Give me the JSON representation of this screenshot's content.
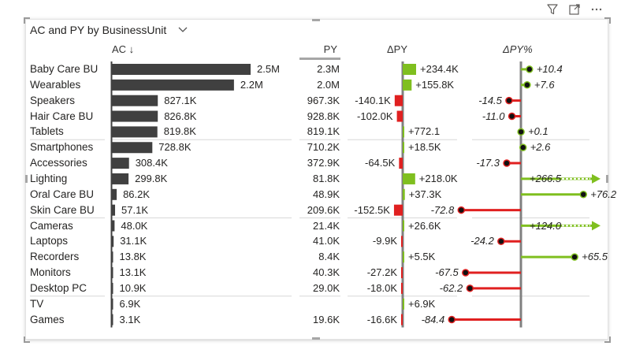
{
  "title": "AC and PY by BusinessUnit",
  "header_icons": [
    "filter-icon",
    "focus-mode-icon",
    "more-options-icon"
  ],
  "columns": {
    "ac": "AC ↓",
    "py": "PY",
    "dpy": "ΔPY",
    "dpyp": "ΔPY%"
  },
  "colors": {
    "bar": "#404040",
    "positive": "#7fbf1f",
    "negative": "#e02020",
    "axis": "#808080"
  },
  "chart_data": {
    "type": "bar",
    "title": "AC and PY by BusinessUnit",
    "categories": [
      "Baby Care BU",
      "Wearables",
      "Speakers",
      "Hair Care BU",
      "Tablets",
      "Smartphones",
      "Accessories",
      "Lighting",
      "Oral Care BU",
      "Skin Care BU",
      "Cameras",
      "Laptops",
      "Recorders",
      "Monitors",
      "Desktop PC",
      "TV",
      "Games"
    ],
    "series": [
      {
        "name": "AC",
        "values": [
          2500,
          2200,
          827.1,
          826.8,
          819.8,
          728.8,
          308.4,
          299.8,
          86.2,
          57.1,
          48.0,
          31.1,
          13.8,
          13.1,
          10.9,
          6.9,
          3.1
        ],
        "labels": [
          "2.5M",
          "2.2M",
          "827.1K",
          "826.8K",
          "819.8K",
          "728.8K",
          "308.4K",
          "299.8K",
          "86.2K",
          "57.1K",
          "48.0K",
          "31.1K",
          "13.8K",
          "13.1K",
          "10.9K",
          "6.9K",
          "3.1K"
        ]
      },
      {
        "name": "PY",
        "values": [
          2300,
          2000,
          967.3,
          928.8,
          819.1,
          710.2,
          372.9,
          81.8,
          48.9,
          209.6,
          21.4,
          41.0,
          8.4,
          40.3,
          29.0,
          null,
          19.6
        ],
        "labels": [
          "2.3M",
          "2.0M",
          "967.3K",
          "928.8K",
          "819.1K",
          "710.2K",
          "372.9K",
          "81.8K",
          "48.9K",
          "209.6K",
          "21.4K",
          "41.0K",
          "8.4K",
          "40.3K",
          "29.0K",
          "",
          "19.6K"
        ]
      },
      {
        "name": "ΔPY",
        "values": [
          234.4,
          155.8,
          -140.1,
          -102.0,
          0.772,
          18.5,
          -64.5,
          218.0,
          37.3,
          -152.5,
          26.6,
          -9.9,
          5.5,
          -27.2,
          -18.0,
          6.9,
          -16.6
        ],
        "labels": [
          "+234.4K",
          "+155.8K",
          "-140.1K",
          "-102.0K",
          "+772.1",
          "+18.5K",
          "-64.5K",
          "+218.0K",
          "+37.3K",
          "-152.5K",
          "+26.6K",
          "-9.9K",
          "+5.5K",
          "-27.2K",
          "-18.0K",
          "+6.9K",
          "-16.6K"
        ]
      },
      {
        "name": "ΔPY%",
        "values": [
          10.4,
          7.6,
          -14.5,
          -11.0,
          0.1,
          2.6,
          -17.3,
          266.5,
          76.2,
          -72.8,
          124.0,
          -24.2,
          65.5,
          -67.5,
          -62.2,
          null,
          -84.4
        ],
        "labels": [
          "+10.4",
          "+7.6",
          "-14.5",
          "-11.0",
          "+0.1",
          "+2.6",
          "-17.3",
          "+266.5",
          "+76.2",
          "-72.8",
          "+124.0",
          "-24.2",
          "+65.5",
          "-67.5",
          "-62.2",
          "",
          "-84.4"
        ]
      }
    ],
    "units": "thousands",
    "group_separators_after": [
      "Tablets",
      "Skin Care BU",
      "Desktop PC"
    ],
    "dpyp_clipped_rows": [
      "Lighting"
    ]
  }
}
